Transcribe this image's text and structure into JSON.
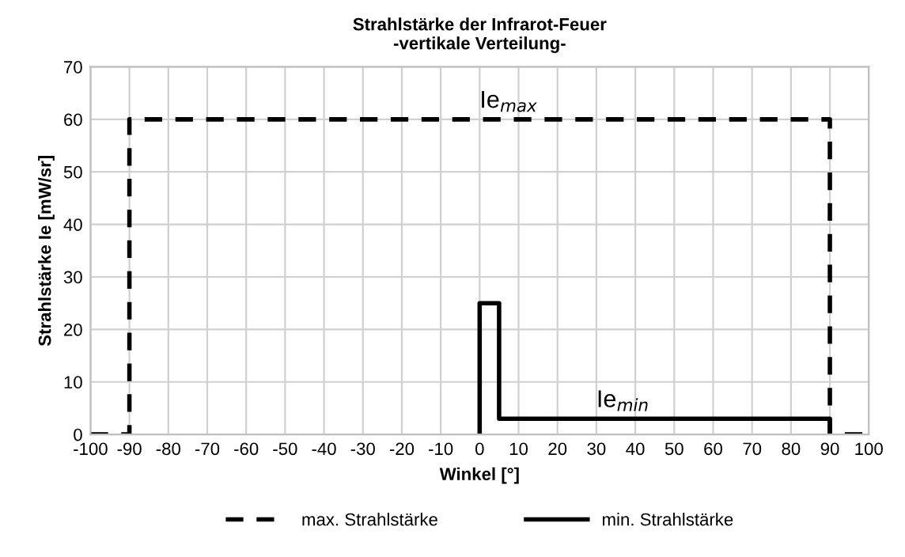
{
  "chart_data": {
    "type": "line",
    "title": "Strahlstärke der Infrarot-Feuer\n-vertikale Verteilung-",
    "xlabel": "Winkel [°]",
    "ylabel": "Strahlstärke Ie [mW/sr]",
    "series": [
      {
        "name": "max. Strahlstärke",
        "color": "#000000",
        "line_style": "dashed",
        "x": [
          -100,
          -90,
          -90,
          90,
          90,
          100
        ],
        "values": [
          0,
          0,
          60,
          60,
          0,
          0
        ]
      },
      {
        "name": "min. Strahlstärke",
        "color": "#000000",
        "line_style": "solid",
        "x": [
          0,
          0,
          5,
          5,
          90,
          90
        ],
        "values": [
          0,
          25,
          25,
          3,
          3,
          0
        ]
      }
    ],
    "annotations": [
      {
        "text": "Ie$_{max}$",
        "x": 0,
        "y": 60
      },
      {
        "text": "Ie$_{min}$",
        "x": 30,
        "y": 3
      }
    ],
    "xlim": [
      -100,
      100
    ],
    "xticks": [
      -100,
      -90,
      -80,
      -70,
      -60,
      -50,
      -40,
      -30,
      -20,
      -10,
      0,
      10,
      20,
      30,
      40,
      50,
      60,
      70,
      80,
      90,
      100
    ],
    "ylim": [
      0,
      70
    ],
    "yticks": [
      0,
      10,
      20,
      30,
      40,
      50,
      60,
      70
    ],
    "grid": true,
    "legend": "bottom",
    "marker": "none"
  }
}
